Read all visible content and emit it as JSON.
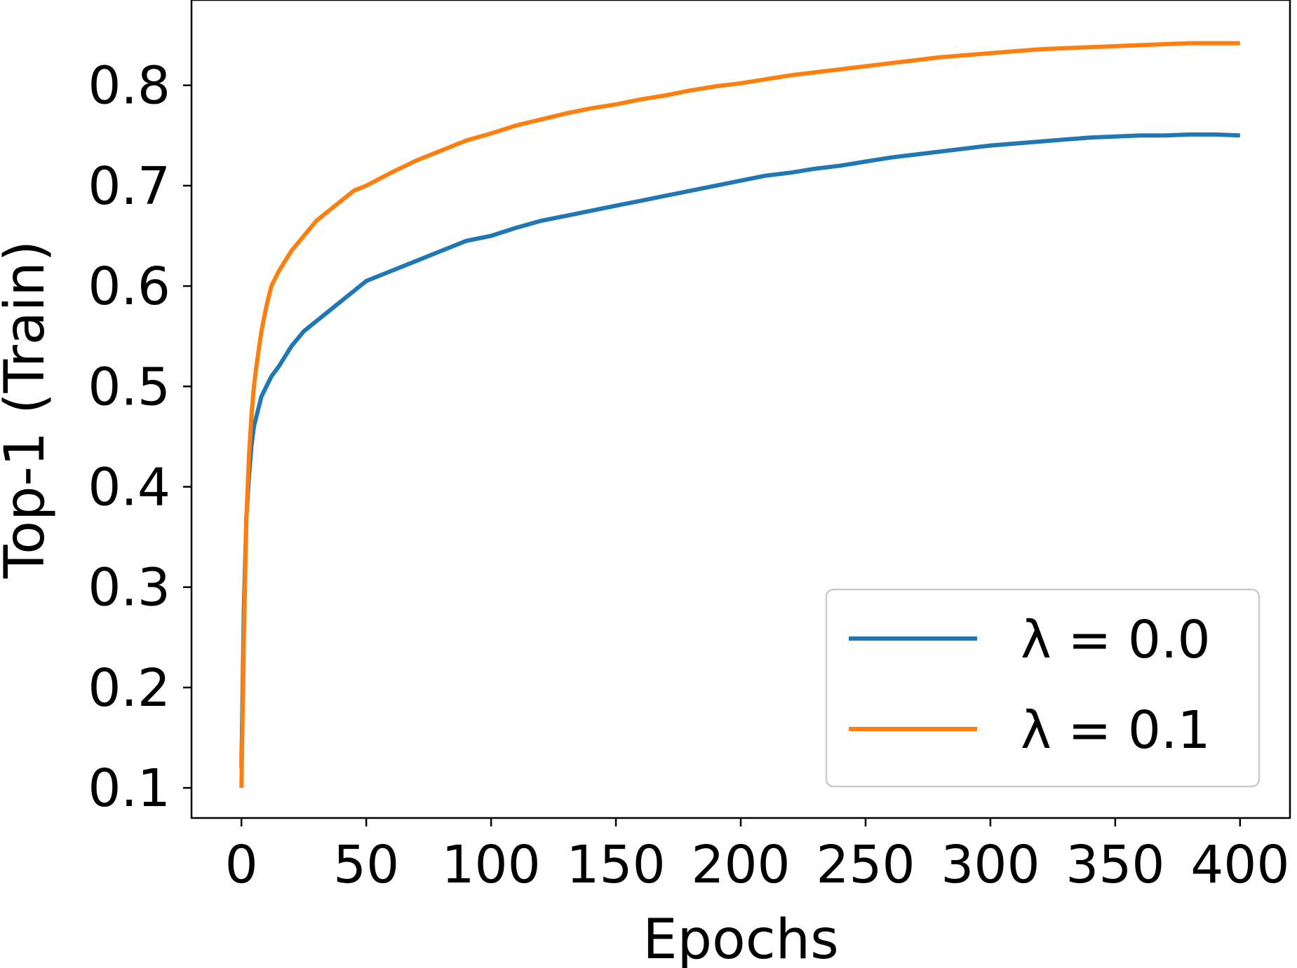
{
  "chart_data": {
    "type": "line",
    "title": "",
    "xlabel": "Epochs",
    "ylabel": "Top-1 (Train)",
    "xlim": [
      -20,
      420
    ],
    "ylim": [
      0.07,
      0.885
    ],
    "xticks": [
      0,
      50,
      100,
      150,
      200,
      250,
      300,
      350,
      400
    ],
    "yticks": [
      0.1,
      0.2,
      0.3,
      0.4,
      0.5,
      0.6,
      0.7,
      0.8
    ],
    "xtick_labels": [
      "0",
      "50",
      "100",
      "150",
      "200",
      "250",
      "300",
      "350",
      "400"
    ],
    "ytick_labels": [
      "0.1",
      "0.2",
      "0.3",
      "0.4",
      "0.5",
      "0.6",
      "0.7",
      "0.8"
    ],
    "grid": false,
    "legend_position": "lower-right",
    "series": [
      {
        "name": "λ = 0.0",
        "color": "#1f77b4",
        "x": [
          0,
          1,
          2,
          3,
          4,
          5,
          6,
          8,
          10,
          12,
          15,
          20,
          25,
          30,
          35,
          40,
          45,
          50,
          60,
          70,
          80,
          90,
          100,
          110,
          120,
          130,
          140,
          150,
          160,
          170,
          180,
          190,
          200,
          210,
          220,
          230,
          240,
          250,
          260,
          270,
          280,
          290,
          300,
          310,
          320,
          330,
          340,
          350,
          360,
          370,
          380,
          390,
          400
        ],
        "y": [
          0.12,
          0.28,
          0.37,
          0.41,
          0.44,
          0.46,
          0.47,
          0.49,
          0.5,
          0.51,
          0.52,
          0.54,
          0.555,
          0.565,
          0.575,
          0.585,
          0.595,
          0.605,
          0.615,
          0.625,
          0.635,
          0.645,
          0.65,
          0.658,
          0.665,
          0.67,
          0.675,
          0.68,
          0.685,
          0.69,
          0.695,
          0.7,
          0.705,
          0.71,
          0.713,
          0.717,
          0.72,
          0.724,
          0.728,
          0.731,
          0.734,
          0.737,
          0.74,
          0.742,
          0.744,
          0.746,
          0.748,
          0.749,
          0.75,
          0.75,
          0.751,
          0.751,
          0.75
        ]
      },
      {
        "name": "λ = 0.1",
        "color": "#ff7f0e",
        "x": [
          0,
          1,
          2,
          3,
          4,
          5,
          6,
          8,
          10,
          12,
          15,
          20,
          25,
          30,
          35,
          40,
          45,
          50,
          60,
          70,
          80,
          90,
          100,
          110,
          120,
          130,
          140,
          150,
          160,
          170,
          180,
          190,
          200,
          210,
          220,
          230,
          240,
          250,
          260,
          270,
          280,
          290,
          300,
          310,
          320,
          330,
          340,
          350,
          360,
          370,
          380,
          390,
          400
        ],
        "y": [
          0.1,
          0.25,
          0.37,
          0.43,
          0.47,
          0.5,
          0.52,
          0.555,
          0.58,
          0.6,
          0.615,
          0.635,
          0.65,
          0.665,
          0.675,
          0.685,
          0.695,
          0.7,
          0.713,
          0.725,
          0.735,
          0.745,
          0.752,
          0.76,
          0.766,
          0.772,
          0.777,
          0.781,
          0.786,
          0.79,
          0.795,
          0.799,
          0.802,
          0.806,
          0.81,
          0.813,
          0.816,
          0.819,
          0.822,
          0.825,
          0.828,
          0.83,
          0.832,
          0.834,
          0.836,
          0.837,
          0.838,
          0.839,
          0.84,
          0.841,
          0.842,
          0.842,
          0.842
        ]
      }
    ]
  }
}
